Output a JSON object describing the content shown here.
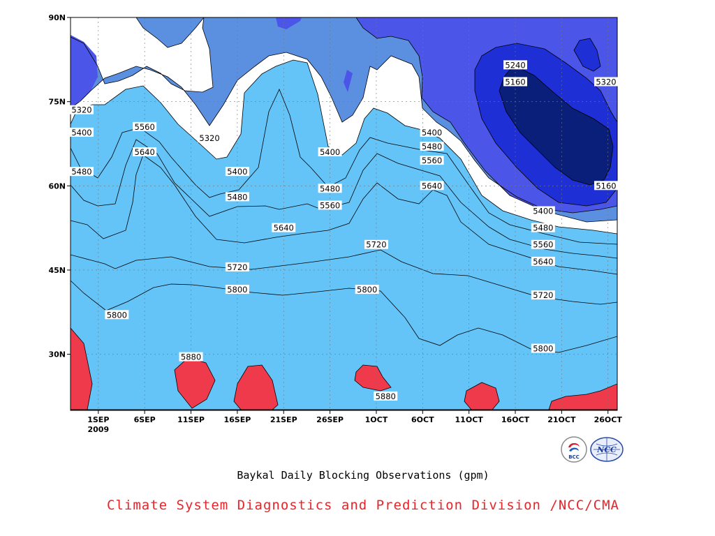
{
  "chart_data": {
    "type": "contour",
    "subtitle": "Baykal Daily Blocking Observations (gpm)",
    "credit": "Climate System Diagnostics and Prediction Division /NCC/CMA",
    "x_ticks": [
      "1SEP",
      "6SEP",
      "11SEP",
      "16SEP",
      "21SEP",
      "26SEP",
      "1OCT",
      "6OCT",
      "11OCT",
      "16OCT",
      "21OCT",
      "26OCT"
    ],
    "x_year": "2009",
    "x_range": [
      "2009-08-29",
      "2009-10-27"
    ],
    "y_ticks": [
      "30N",
      "45N",
      "60N",
      "75N",
      "90N"
    ],
    "ylim": [
      20,
      90
    ],
    "contour_levels": [
      5160,
      5240,
      5320,
      5400,
      5480,
      5560,
      5640,
      5720,
      5800,
      5880
    ],
    "fill_colors": [
      "#0a1f7a",
      "#1e2fd6",
      "#4b55e8",
      "#5b8fe0",
      "#64c3f7",
      "#fdfd7a",
      "#fde39b",
      "#f9a468",
      "#f97c47",
      "#f47078",
      "#ee3a4b"
    ],
    "contour_labels": [
      {
        "text": "5320",
        "x": "2009-08-29",
        "y": 73.5
      },
      {
        "text": "5400",
        "x": "2009-08-29",
        "y": 69.5
      },
      {
        "text": "5480",
        "x": "2009-08-30",
        "y": 62.5
      },
      {
        "text": "5560",
        "x": "2009-09-06",
        "y": 70.5
      },
      {
        "text": "5640",
        "x": "2009-09-06",
        "y": 66
      },
      {
        "text": "5320",
        "x": "2009-09-13",
        "y": 68.5
      },
      {
        "text": "5400",
        "x": "2009-09-16",
        "y": 62.5
      },
      {
        "text": "5480",
        "x": "2009-09-16",
        "y": 58
      },
      {
        "text": "5640",
        "x": "2009-09-21",
        "y": 52.5
      },
      {
        "text": "5720",
        "x": "2009-09-16",
        "y": 45.5
      },
      {
        "text": "5800",
        "x": "2009-09-16",
        "y": 41.5
      },
      {
        "text": "5800",
        "x": "2009-09-03",
        "y": 37
      },
      {
        "text": "5880",
        "x": "2009-09-11",
        "y": 29.5
      },
      {
        "text": "5400",
        "x": "2009-09-26",
        "y": 66
      },
      {
        "text": "5480",
        "x": "2009-09-26",
        "y": 59.5
      },
      {
        "text": "5560",
        "x": "2009-09-26",
        "y": 56.5
      },
      {
        "text": "5720",
        "x": "2009-10-01",
        "y": 49.5
      },
      {
        "text": "5800",
        "x": "2009-09-30",
        "y": 41.5
      },
      {
        "text": "5880",
        "x": "2009-10-02",
        "y": 22.5
      },
      {
        "text": "5400",
        "x": "2009-10-07",
        "y": 69.5
      },
      {
        "text": "5480",
        "x": "2009-10-07",
        "y": 67
      },
      {
        "text": "5560",
        "x": "2009-10-07",
        "y": 64.5
      },
      {
        "text": "5640",
        "x": "2009-10-07",
        "y": 60
      },
      {
        "text": "5240",
        "x": "2009-10-16",
        "y": 81.5
      },
      {
        "text": "5160",
        "x": "2009-10-16",
        "y": 78.5
      },
      {
        "text": "5320",
        "x": "2009-10-27",
        "y": 78.5
      },
      {
        "text": "5160",
        "x": "2009-10-26",
        "y": 60
      },
      {
        "text": "5400",
        "x": "2009-10-19",
        "y": 55.5
      },
      {
        "text": "5480",
        "x": "2009-10-19",
        "y": 52.5
      },
      {
        "text": "5560",
        "x": "2009-10-19",
        "y": 49.5
      },
      {
        "text": "5640",
        "x": "2009-10-19",
        "y": 46.5
      },
      {
        "text": "5720",
        "x": "2009-10-19",
        "y": 40.5
      },
      {
        "text": "5800",
        "x": "2009-10-19",
        "y": 31
      }
    ],
    "grid": true,
    "logos": [
      "BCC",
      "NCC"
    ]
  }
}
